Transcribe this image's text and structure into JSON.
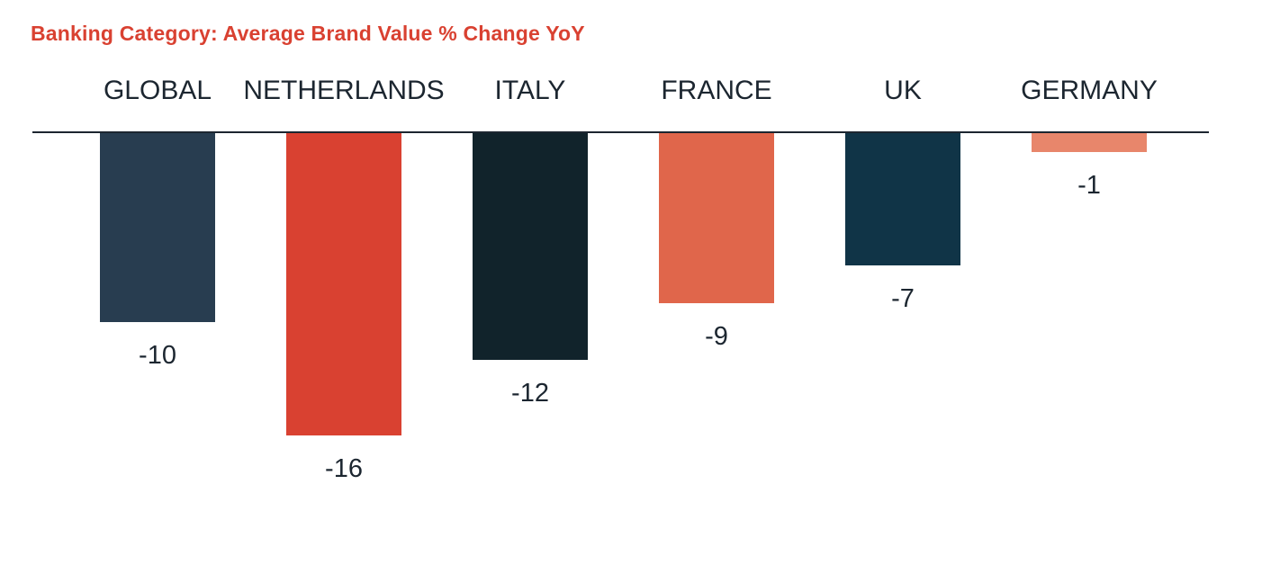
{
  "chart_data": {
    "type": "bar",
    "title": "Banking Category: Average Brand Value % Change YoY",
    "categories": [
      "GLOBAL",
      "NETHERLANDS",
      "ITALY",
      "FRANCE",
      "UK",
      "GERMANY"
    ],
    "values": [
      -10,
      -16,
      -12,
      -9,
      -7,
      -1
    ],
    "value_labels": [
      "-10",
      "-16",
      "-12",
      "-9",
      "-7",
      "-1"
    ],
    "colors": [
      "#283d50",
      "#d94131",
      "#11232b",
      "#e0664b",
      "#103447",
      "#e8866b"
    ],
    "title_color": "#d94131",
    "xlabel": "",
    "ylabel": "",
    "ylim": [
      -16,
      0
    ],
    "grid": false,
    "legend": "none",
    "category_axis_position": "top"
  }
}
